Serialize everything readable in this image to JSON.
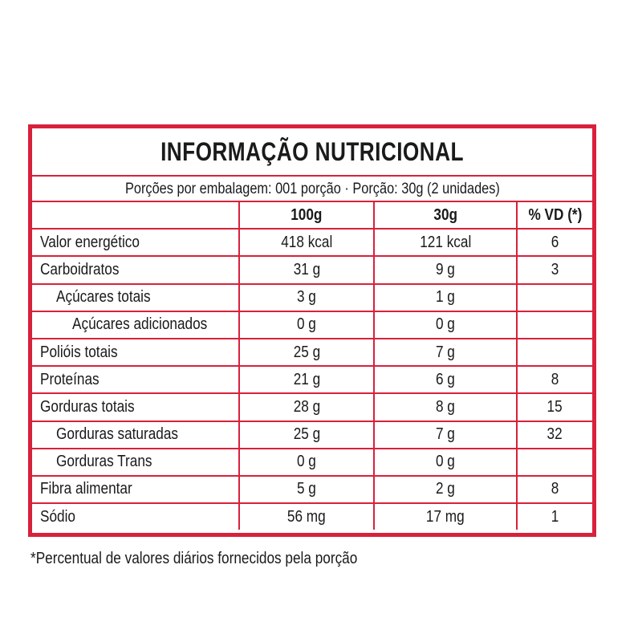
{
  "title": "INFORMAÇÃO NUTRICIONAL",
  "portion_line": "Porções por embalagem: 001 porção · Porção: 30g (2 unidades)",
  "columns": [
    "",
    "100g",
    "30g",
    "% VD (*)"
  ],
  "rows": [
    {
      "label": "Valor energético",
      "indent": 0,
      "per100": "418 kcal",
      "perPortion": "121 kcal",
      "vd": "6"
    },
    {
      "label": "Carboidratos",
      "indent": 0,
      "per100": "31 g",
      "perPortion": "9 g",
      "vd": "3"
    },
    {
      "label": "Açúcares totais",
      "indent": 1,
      "per100": "3 g",
      "perPortion": "1 g",
      "vd": ""
    },
    {
      "label": "Açúcares adicionados",
      "indent": 2,
      "per100": "0 g",
      "perPortion": "0 g",
      "vd": ""
    },
    {
      "label": "Polióis totais",
      "indent": 0,
      "per100": "25 g",
      "perPortion": "7 g",
      "vd": ""
    },
    {
      "label": "Proteínas",
      "indent": 0,
      "per100": "21 g",
      "perPortion": "6 g",
      "vd": "8"
    },
    {
      "label": "Gorduras totais",
      "indent": 0,
      "per100": "28 g",
      "perPortion": "8 g",
      "vd": "15"
    },
    {
      "label": "Gorduras saturadas",
      "indent": 1,
      "per100": "25 g",
      "perPortion": "7 g",
      "vd": "32"
    },
    {
      "label": "Gorduras Trans",
      "indent": 1,
      "per100": "0 g",
      "perPortion": "0 g",
      "vd": ""
    },
    {
      "label": "Fibra alimentar",
      "indent": 0,
      "per100": "5 g",
      "perPortion": "2 g",
      "vd": "8"
    },
    {
      "label": "Sódio",
      "indent": 0,
      "per100": "56 mg",
      "perPortion": "17 mg",
      "vd": "1"
    }
  ],
  "footnote": "*Percentual de valores diários fornecidos pela porção",
  "colors": {
    "border": "#d8213b",
    "text": "#1a1a1a"
  }
}
